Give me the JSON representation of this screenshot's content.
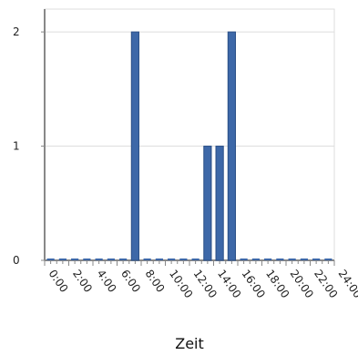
{
  "chart_data": {
    "type": "bar",
    "title": "",
    "xlabel": "Zeit",
    "ylabel": "",
    "xlim": [
      0,
      24
    ],
    "ylim": [
      0,
      2.2
    ],
    "y_ticks": [
      "0",
      "1",
      "2"
    ],
    "y_tick_values": [
      0,
      1,
      2
    ],
    "x_tick_labels": [
      "0:00",
      "2:00",
      "4:00",
      "6:00",
      "8:00",
      "10:00",
      "12:00",
      "14:00",
      "16:00",
      "18:00",
      "20:00",
      "22:00",
      "24:00"
    ],
    "x_tick_values": [
      0,
      2,
      4,
      6,
      8,
      10,
      12,
      14,
      16,
      18,
      20,
      22,
      24
    ],
    "categories": [
      "0:00",
      "1:00",
      "2:00",
      "3:00",
      "4:00",
      "5:00",
      "6:00",
      "7:00",
      "8:00",
      "9:00",
      "10:00",
      "11:00",
      "12:00",
      "13:00",
      "14:00",
      "15:00",
      "16:00",
      "17:00",
      "18:00",
      "19:00",
      "20:00",
      "21:00",
      "22:00",
      "23:00"
    ],
    "values": [
      0,
      0,
      0,
      0,
      0,
      0,
      0,
      2,
      0,
      0,
      0,
      0,
      0,
      1,
      1,
      2,
      0,
      0,
      0,
      0,
      0,
      0,
      0,
      0
    ],
    "grid": true,
    "legend": "none",
    "colors": {
      "bar": "#3d68a8",
      "bar_edge": "#2a4f87",
      "grid": "#dddddd",
      "axis": "#888888"
    }
  }
}
